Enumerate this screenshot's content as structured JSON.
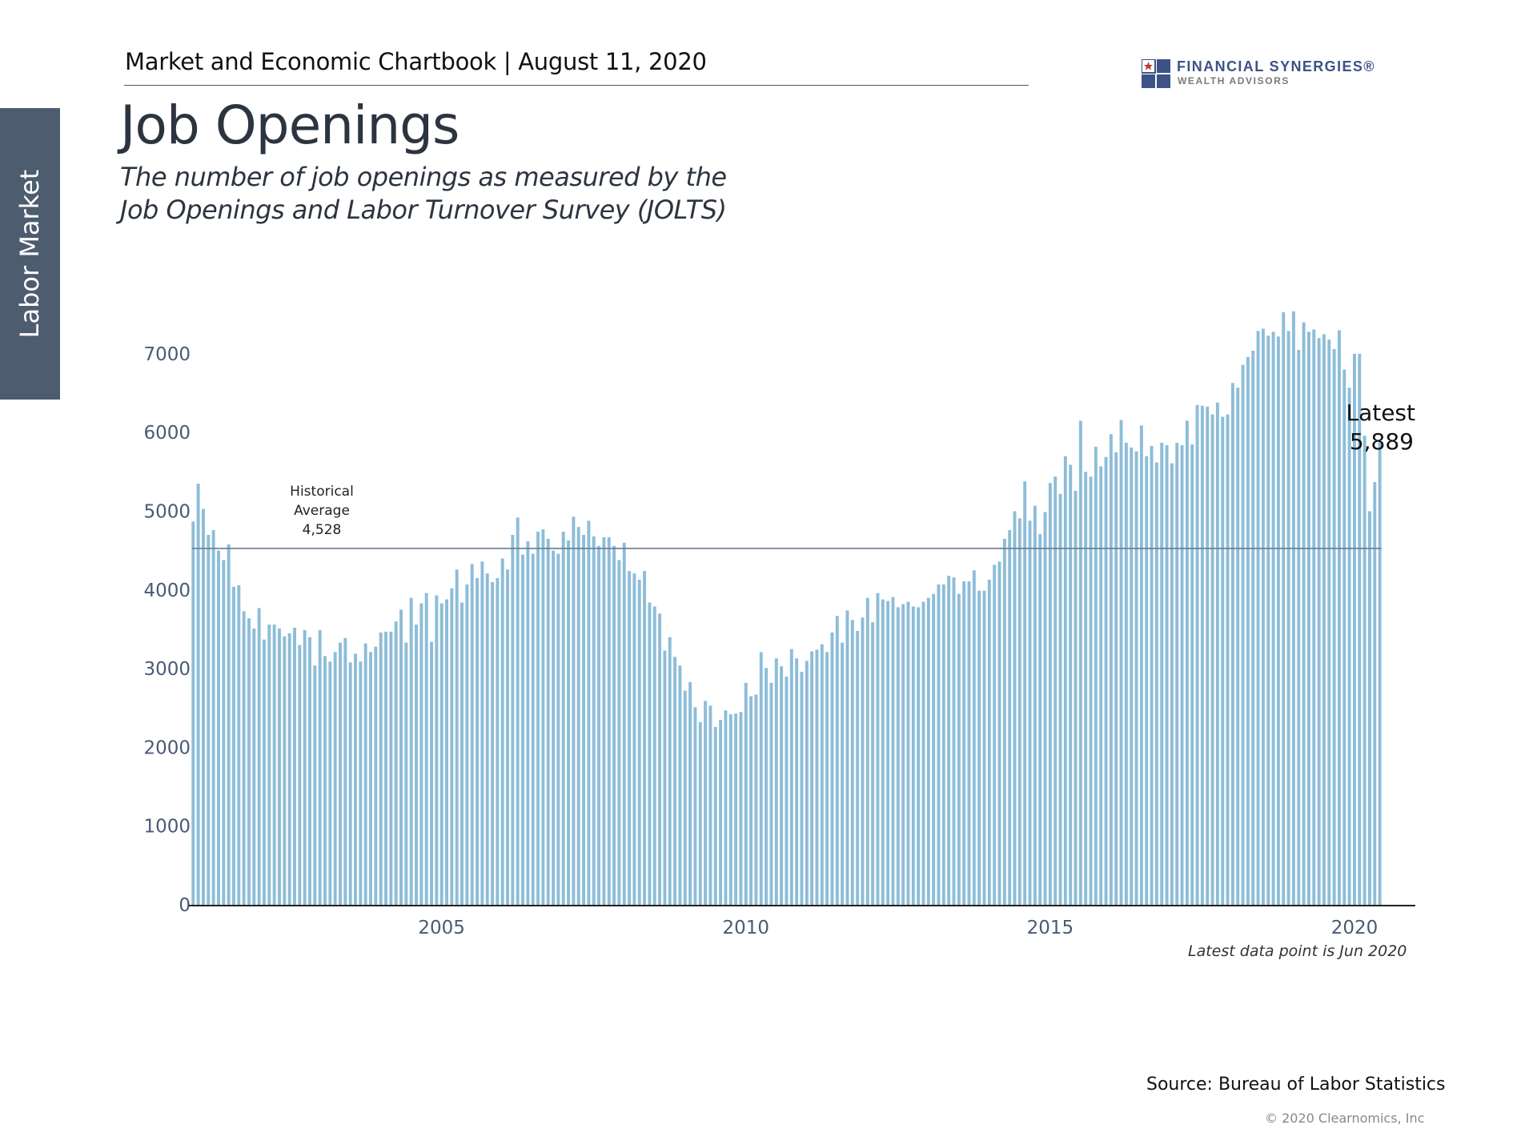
{
  "sidebar": {
    "label": "Labor Market"
  },
  "header": {
    "text": "Market and Economic Chartbook | August 11, 2020"
  },
  "logo": {
    "name": "FINANCIAL SYNERGIES®",
    "subname": "WEALTH ADVISORS",
    "color": "#3d5287"
  },
  "title": "Job Openings",
  "subtitle": {
    "line1": "The number of job openings as measured by the",
    "line2": "Job Openings and Labor Turnover Survey (JOLTS)"
  },
  "footer": {
    "note": "Latest data point is Jun 2020",
    "source": "Source: Bureau of Labor Statistics",
    "copyright": "© 2020 Clearnomics, Inc"
  },
  "colors": {
    "bar": "#8dbdd8",
    "avg_line": "#6b7b93",
    "axis": "#222222"
  },
  "chart_data": {
    "type": "bar",
    "title": "Job Openings",
    "x_label": "",
    "y_label": "",
    "x_range": [
      2000.9,
      2021.0
    ],
    "ylim": [
      0,
      7600
    ],
    "yticks": [
      0,
      1000,
      2000,
      3000,
      4000,
      5000,
      6000,
      7000
    ],
    "xticks": [
      2005,
      2010,
      2015,
      2020
    ],
    "x_start": 2000.917,
    "x_step": 0.08333,
    "values": [
      4870,
      5350,
      5030,
      4700,
      4760,
      4500,
      4380,
      4580,
      4040,
      4060,
      3730,
      3640,
      3510,
      3770,
      3370,
      3560,
      3560,
      3510,
      3410,
      3450,
      3520,
      3300,
      3490,
      3400,
      3040,
      3490,
      3160,
      3090,
      3210,
      3330,
      3390,
      3080,
      3190,
      3090,
      3320,
      3210,
      3280,
      3460,
      3470,
      3470,
      3600,
      3750,
      3330,
      3900,
      3560,
      3830,
      3960,
      3340,
      3930,
      3830,
      3880,
      4020,
      4260,
      3840,
      4070,
      4330,
      4150,
      4360,
      4210,
      4100,
      4150,
      4400,
      4260,
      4700,
      4920,
      4450,
      4620,
      4460,
      4740,
      4770,
      4650,
      4500,
      4460,
      4740,
      4630,
      4930,
      4800,
      4700,
      4880,
      4680,
      4560,
      4670,
      4670,
      4560,
      4380,
      4600,
      4240,
      4210,
      4130,
      4240,
      3840,
      3790,
      3700,
      3230,
      3400,
      3150,
      3040,
      2720,
      2830,
      2510,
      2320,
      2590,
      2530,
      2260,
      2350,
      2470,
      2420,
      2430,
      2450,
      2820,
      2650,
      2670,
      3210,
      3010,
      2820,
      3130,
      3030,
      2900,
      3250,
      3130,
      2960,
      3100,
      3220,
      3240,
      3310,
      3210,
      3460,
      3670,
      3330,
      3740,
      3620,
      3480,
      3650,
      3900,
      3590,
      3960,
      3880,
      3860,
      3910,
      3780,
      3820,
      3850,
      3790,
      3780,
      3850,
      3900,
      3950,
      4070,
      4070,
      4180,
      4160,
      3950,
      4110,
      4110,
      4250,
      3990,
      3990,
      4130,
      4320,
      4360,
      4650,
      4760,
      5000,
      4910,
      5380,
      4880,
      5070,
      4710,
      4990,
      5360,
      5440,
      5220,
      5700,
      5590,
      5260,
      6150,
      5500,
      5440,
      5820,
      5570,
      5690,
      5980,
      5750,
      6160,
      5870,
      5810,
      5760,
      6090,
      5700,
      5830,
      5620,
      5870,
      5840,
      5610,
      5870,
      5840,
      6150,
      5850,
      6350,
      6340,
      6330,
      6230,
      6380,
      6200,
      6230,
      6630,
      6570,
      6860,
      6960,
      7040,
      7290,
      7320,
      7230,
      7280,
      7220,
      7530,
      7290,
      7540,
      7050,
      7400,
      7280,
      7310,
      7200,
      7250,
      7180,
      7060,
      7300,
      6800,
      6570,
      7000,
      7000,
      5960,
      5000,
      5370,
      5889
    ],
    "reference_line": {
      "value": 4528,
      "label_lines": [
        "Historical",
        "Average",
        "4,528"
      ]
    },
    "latest": {
      "label": "Latest",
      "value_text": "5,889",
      "value": 5889
    }
  }
}
